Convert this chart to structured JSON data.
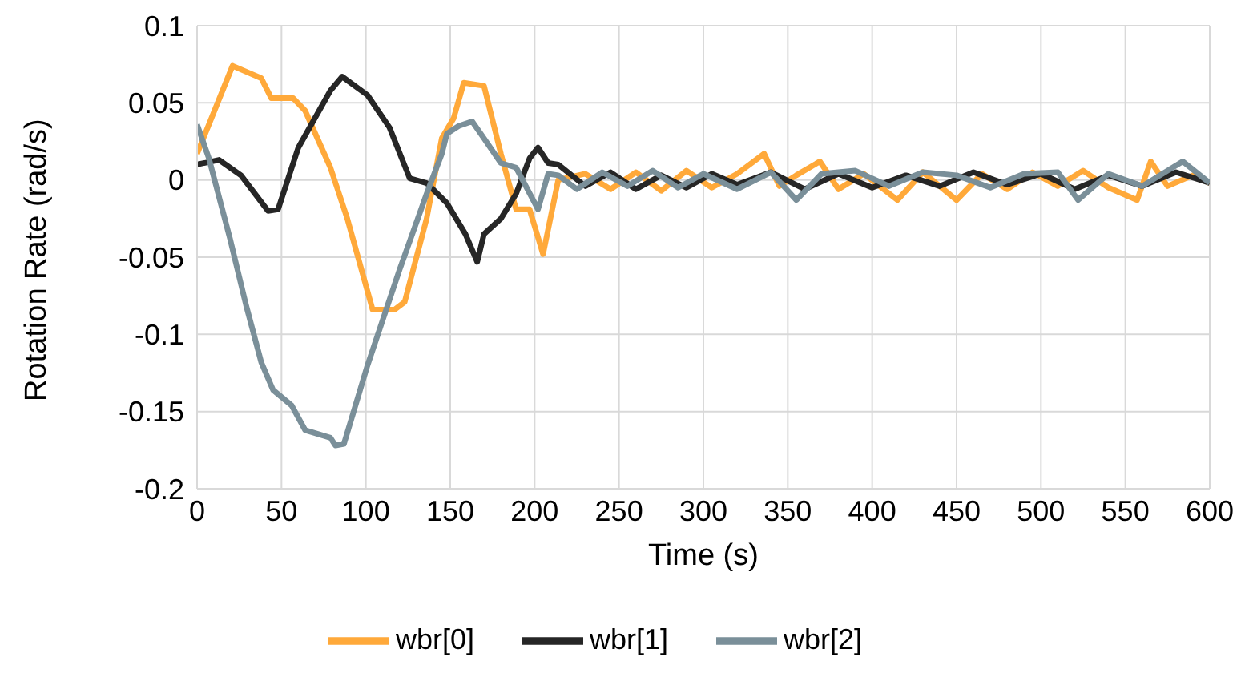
{
  "chart_data": {
    "type": "line",
    "xlabel": "Time (s)",
    "ylabel": "Rotation Rate (rad/s)",
    "xlim": [
      0,
      600
    ],
    "xticks": [
      0,
      50,
      100,
      150,
      200,
      250,
      300,
      350,
      400,
      450,
      500,
      550,
      600
    ],
    "ylim": [
      -0.2,
      0.1
    ],
    "yticks": [
      -0.2,
      -0.15,
      -0.1,
      -0.05,
      0,
      0.05,
      0.1
    ],
    "grid": true,
    "legend": "bottom",
    "marker": "none",
    "line_style": "solid",
    "series": [
      {
        "name": "wbr[0]",
        "color": "#ffa93a",
        "x": [
          0,
          21,
          38,
          44,
          57,
          64,
          79,
          89,
          104,
          117,
          123,
          136,
          145,
          152,
          158,
          170,
          180,
          189,
          197,
          205,
          214,
          230,
          245,
          260,
          275,
          290,
          305,
          320,
          336,
          345,
          355,
          369,
          380,
          395,
          415,
          430,
          450,
          465,
          480,
          495,
          510,
          525,
          540,
          557,
          565,
          575,
          590,
          600
        ],
        "values": [
          0.017,
          0.074,
          0.066,
          0.053,
          0.053,
          0.045,
          0.008,
          -0.025,
          -0.084,
          -0.084,
          -0.079,
          -0.025,
          0.027,
          0.04,
          0.063,
          0.061,
          0.017,
          -0.019,
          -0.019,
          -0.048,
          0,
          0.004,
          -0.006,
          0.005,
          -0.007,
          0.006,
          -0.005,
          0.004,
          0.017,
          -0.004,
          0.003,
          0.012,
          -0.006,
          0.004,
          -0.013,
          0.005,
          -0.013,
          0.004,
          -0.006,
          0.005,
          -0.004,
          0.006,
          -0.005,
          -0.013,
          0.012,
          -0.004,
          0.003,
          -0.002
        ]
      },
      {
        "name": "wbr[1]",
        "color": "#262626",
        "x": [
          0,
          13,
          26,
          42,
          48,
          60,
          79,
          86,
          101,
          114,
          126,
          136,
          148,
          159,
          166,
          170,
          180,
          189,
          197,
          202,
          208,
          214,
          230,
          245,
          260,
          275,
          290,
          305,
          320,
          340,
          360,
          380,
          400,
          420,
          440,
          460,
          480,
          500,
          520,
          540,
          560,
          580,
          600
        ],
        "values": [
          0.01,
          0.013,
          0.003,
          -0.02,
          -0.019,
          0.021,
          0.058,
          0.067,
          0.055,
          0.034,
          0.001,
          -0.002,
          -0.015,
          -0.035,
          -0.053,
          -0.035,
          -0.025,
          -0.009,
          0.014,
          0.021,
          0.011,
          0.01,
          -0.004,
          0.005,
          -0.006,
          0.003,
          -0.005,
          0.004,
          -0.003,
          0.005,
          -0.006,
          0.004,
          -0.005,
          0.003,
          -0.004,
          0.005,
          -0.003,
          0.004,
          -0.006,
          0.003,
          -0.004,
          0.005,
          -0.002
        ]
      },
      {
        "name": "wbr[2]",
        "color": "#7a8f99",
        "x": [
          0,
          7,
          19.5,
          29,
          38,
          45,
          56,
          64,
          79,
          82,
          87,
          101,
          120,
          136,
          145,
          148,
          155,
          163,
          170,
          180,
          189,
          202,
          208,
          214,
          225,
          240,
          255,
          270,
          285,
          300,
          320,
          340,
          355,
          370,
          390,
          410,
          430,
          450,
          470,
          490,
          510,
          522,
          540,
          560,
          584,
          600
        ],
        "values": [
          0.036,
          0.014,
          -0.038,
          -0.081,
          -0.118,
          -0.136,
          -0.146,
          -0.162,
          -0.167,
          -0.172,
          -0.171,
          -0.12,
          -0.058,
          -0.009,
          0.017,
          0.03,
          0.035,
          0.038,
          0.027,
          0.011,
          0.008,
          -0.019,
          0.004,
          0.003,
          -0.006,
          0.005,
          -0.004,
          0.006,
          -0.005,
          0.004,
          -0.006,
          0.005,
          -0.013,
          0.004,
          0.006,
          -0.004,
          0.005,
          0.003,
          -0.005,
          0.004,
          0.005,
          -0.013,
          0.004,
          -0.004,
          0.012,
          -0.002
        ]
      }
    ]
  }
}
